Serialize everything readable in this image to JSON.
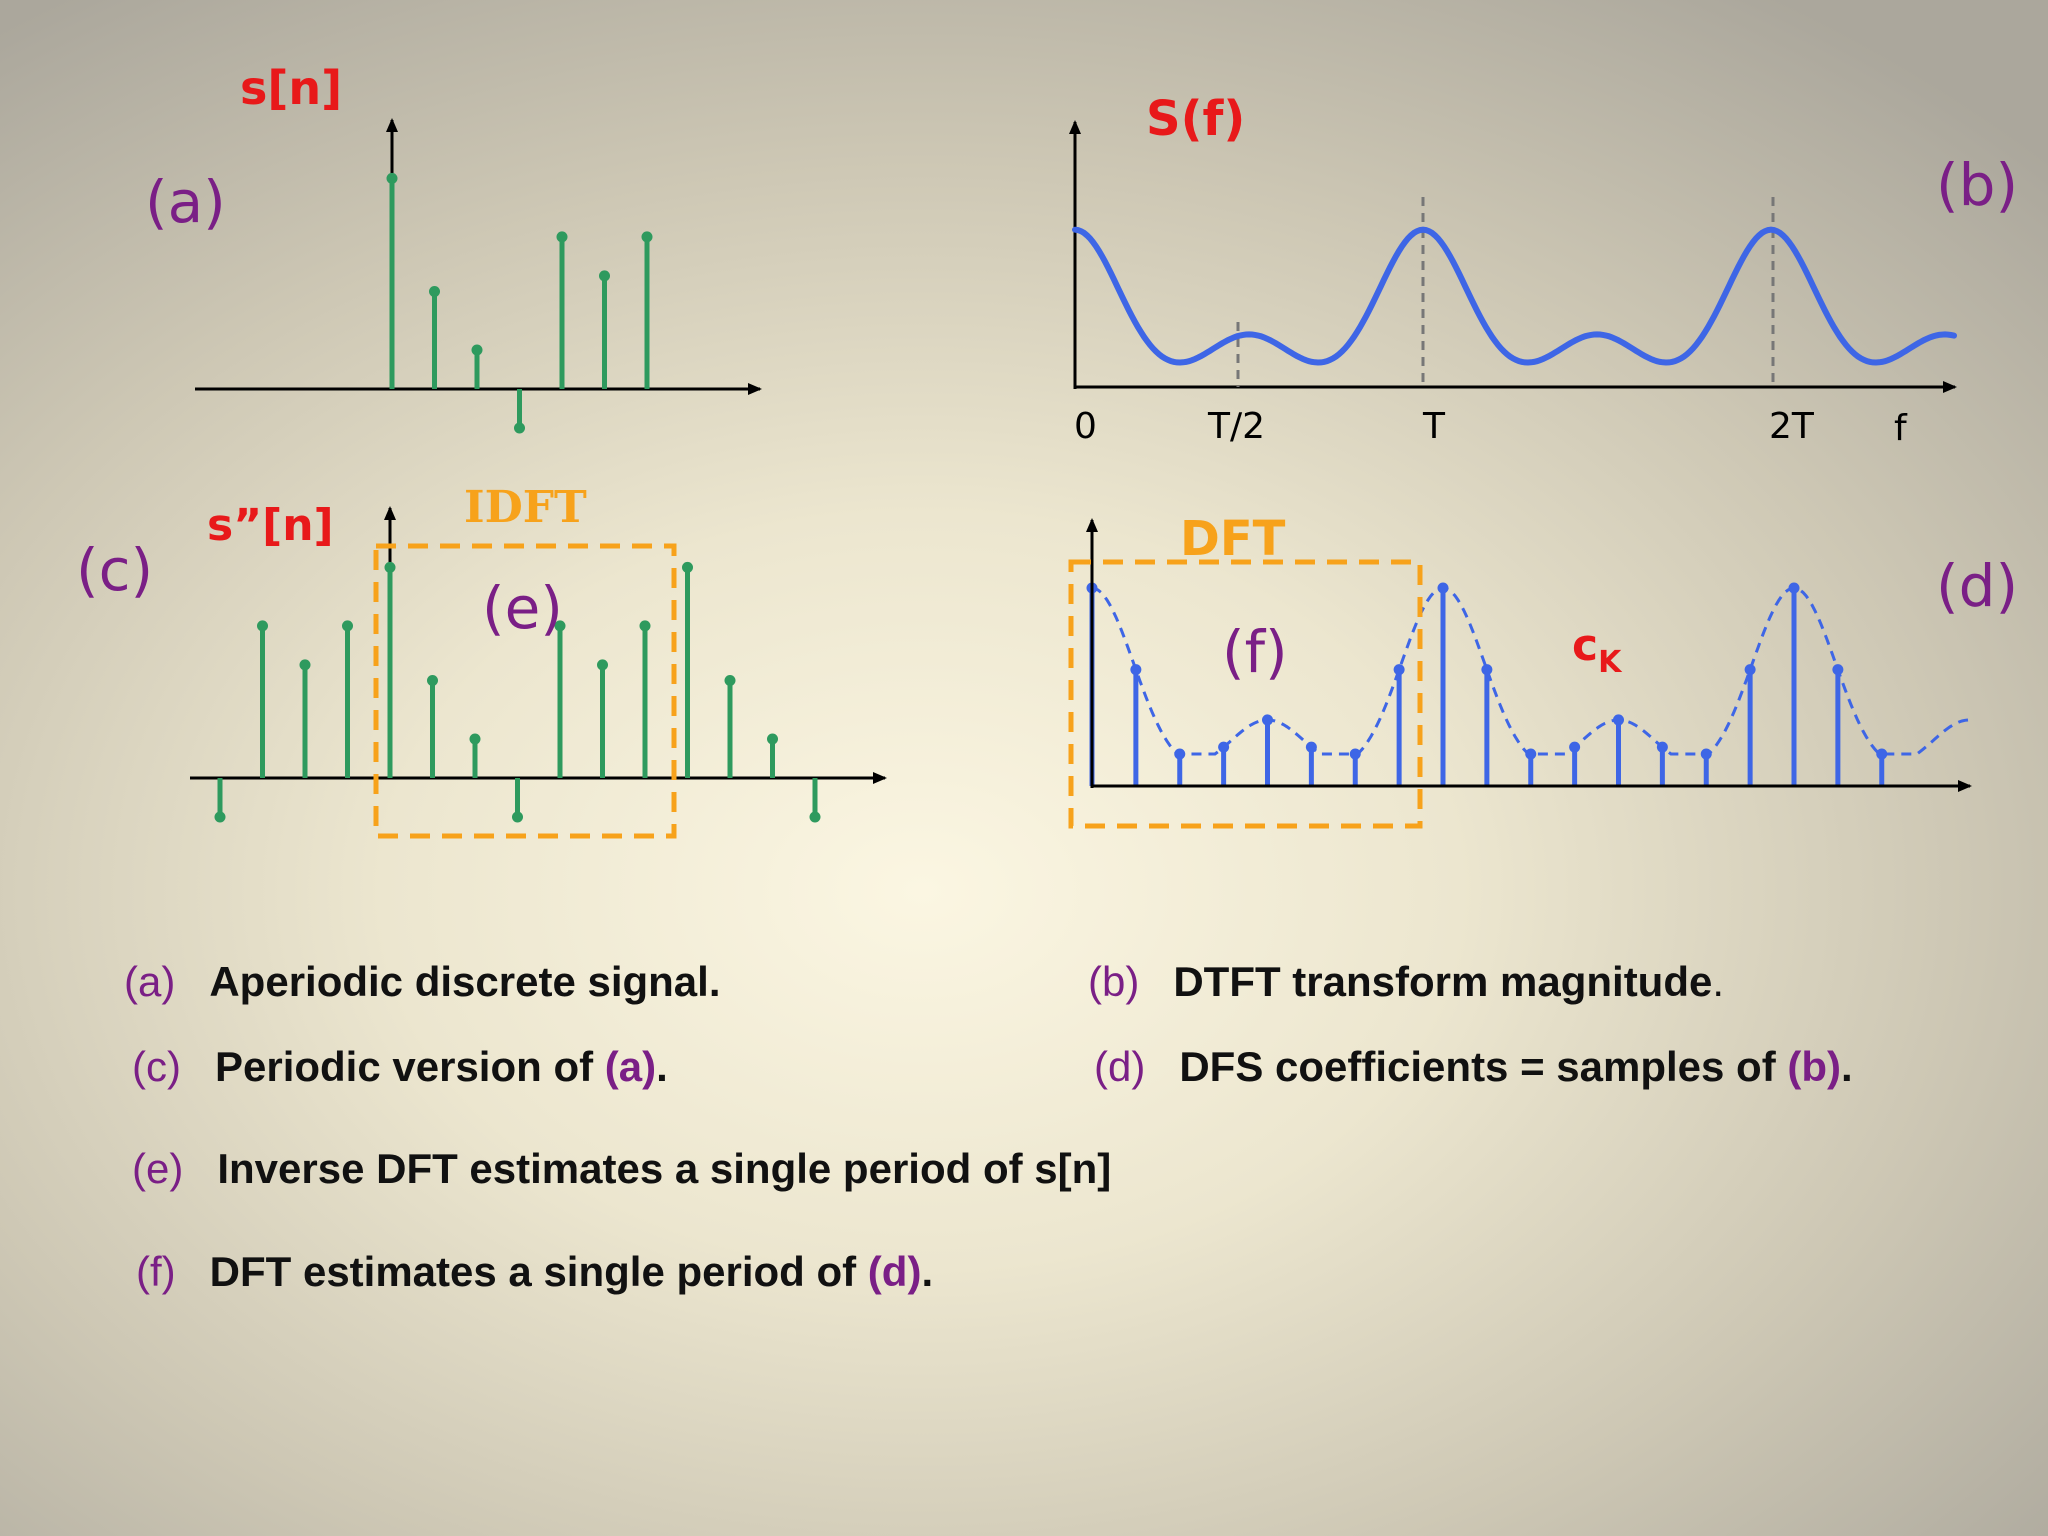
{
  "panels": {
    "a": {
      "label": "(a)",
      "axis_title": "s[n]",
      "stems": [
        {
          "n": 0,
          "v": 5.4
        },
        {
          "n": 1,
          "v": 2.5
        },
        {
          "n": 2,
          "v": 1.0
        },
        {
          "n": 3,
          "v": -1.0
        },
        {
          "n": 4,
          "v": 3.9
        },
        {
          "n": 5,
          "v": 2.9
        },
        {
          "n": 6,
          "v": 3.9
        }
      ]
    },
    "b": {
      "label": "(b)",
      "axis_title": "S(f)",
      "tick_labels": [
        "0",
        "T/2",
        "T",
        "2T",
        "f"
      ]
    },
    "c": {
      "label": "(c)",
      "axis_title": "s”[n]",
      "box_title": "IDFT",
      "stems": [
        {
          "n": -4,
          "v": -1.0
        },
        {
          "n": -3,
          "v": 3.9
        },
        {
          "n": -2,
          "v": 2.9
        },
        {
          "n": -1,
          "v": 3.9
        },
        {
          "n": 0,
          "v": 5.4
        },
        {
          "n": 1,
          "v": 2.5
        },
        {
          "n": 2,
          "v": 1.0
        },
        {
          "n": 3,
          "v": -1.0
        },
        {
          "n": 4,
          "v": 3.9
        },
        {
          "n": 5,
          "v": 2.9
        },
        {
          "n": 6,
          "v": 3.9
        },
        {
          "n": 7,
          "v": 5.4
        },
        {
          "n": 8,
          "v": 2.5
        },
        {
          "n": 9,
          "v": 1.0
        },
        {
          "n": 10,
          "v": -1.0
        }
      ]
    },
    "d": {
      "label": "(d)",
      "box_title": "DFT",
      "coef_label": "c",
      "coef_sub": "K"
    },
    "e": {
      "label": "(e)"
    },
    "f": {
      "label": "(f)"
    }
  },
  "captions": [
    {
      "tag": "(a)",
      "text": "Aperiodic discrete signal.",
      "ref": "",
      "end": ""
    },
    {
      "tag": "(b)",
      "text": "DTFT transform magnitude",
      "ref": "",
      "end": "."
    },
    {
      "tag": "(c)",
      "text": "Periodic version of ",
      "ref": "(a)",
      "end": "."
    },
    {
      "tag": "(d)",
      "text": "DFS coefficients = samples of ",
      "ref": "(b)",
      "end": "."
    },
    {
      "tag": "(e)",
      "text": "Inverse DFT estimates a single period of s[n]",
      "ref": "",
      "end": ""
    },
    {
      "tag": "(f)",
      "text": "DFT estimates a single period of ",
      "ref": "(d)",
      "end": "."
    }
  ],
  "colors": {
    "stem_green": "#2e9a5e",
    "curve_blue": "#3e66e6",
    "title_red": "#e8191a",
    "label_purple": "#7a1f86",
    "box_orange": "#f7a21b"
  }
}
